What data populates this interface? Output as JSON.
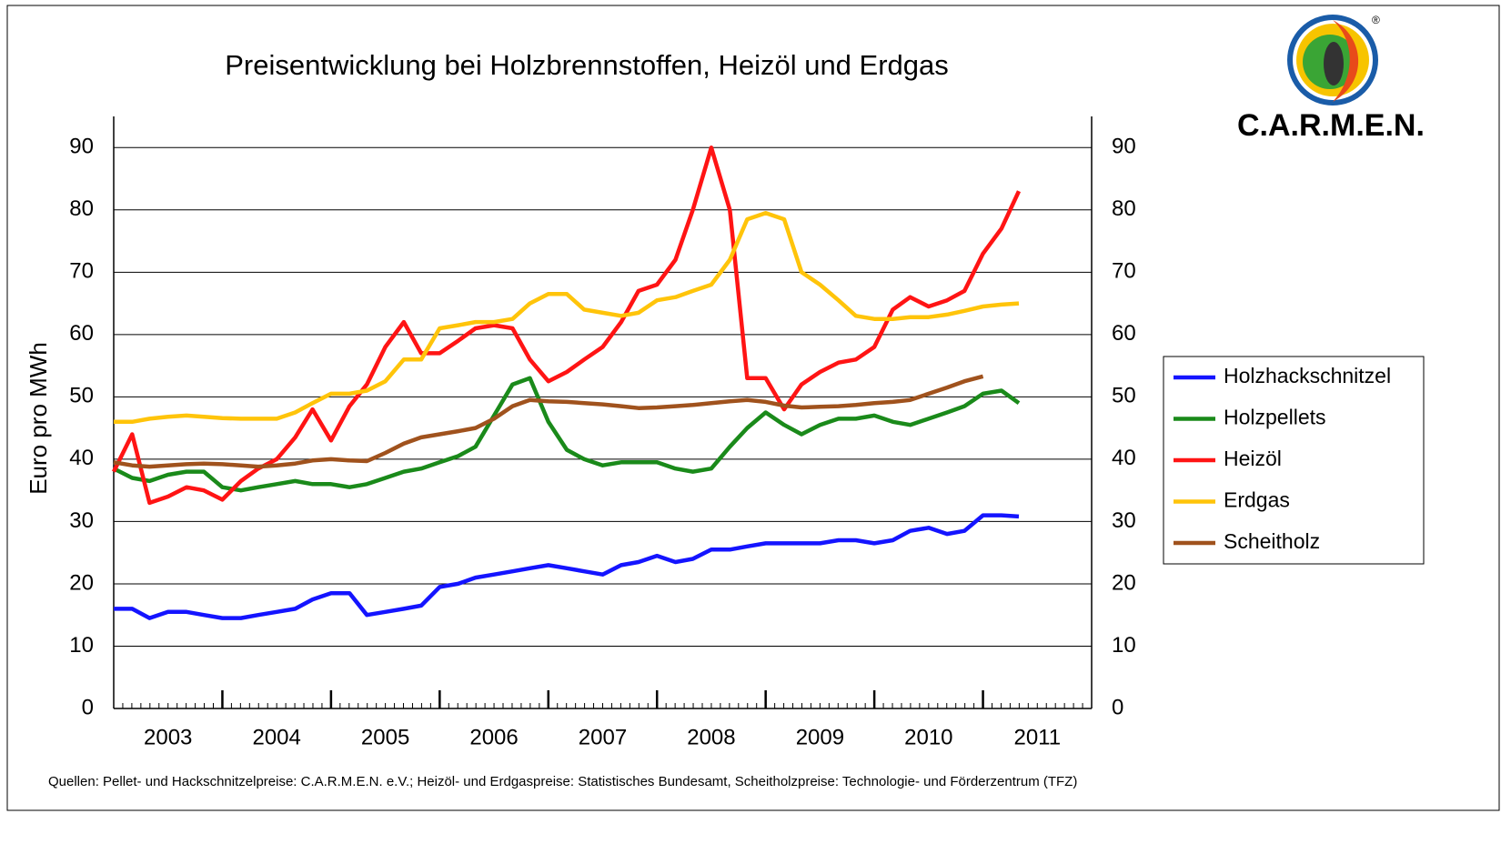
{
  "chart_data": {
    "type": "line",
    "title": "Preisentwicklung bei Holzbrennstoffen, Heizöl und Erdgas",
    "y_label": "Euro pro MWh",
    "source": "Quellen: Pellet- und Hackschnitzelpreise: C.A.R.M.E.N. e.V.; Heizöl- und Erdgaspreise: Statistisches Bundesamt, Scheitholzpreise: Technologie- und Förderzentrum (TFZ)",
    "logo_text": "C.A.R.M.E.N.",
    "logo_mark": "®",
    "x": [
      2003.0,
      2003.17,
      2003.33,
      2003.5,
      2003.67,
      2003.83,
      2004.0,
      2004.17,
      2004.33,
      2004.5,
      2004.67,
      2004.83,
      2005.0,
      2005.17,
      2005.33,
      2005.5,
      2005.67,
      2005.83,
      2006.0,
      2006.17,
      2006.33,
      2006.5,
      2006.67,
      2006.83,
      2007.0,
      2007.17,
      2007.33,
      2007.5,
      2007.67,
      2007.83,
      2008.0,
      2008.17,
      2008.33,
      2008.5,
      2008.67,
      2008.83,
      2009.0,
      2009.17,
      2009.33,
      2009.5,
      2009.67,
      2009.83,
      2010.0,
      2010.17,
      2010.33,
      2010.5,
      2010.67,
      2010.83,
      2011.0,
      2011.17,
      2011.33
    ],
    "xlim": [
      2003,
      2012
    ],
    "xticks": [
      {
        "value": 2003.5,
        "label": "2003"
      },
      {
        "value": 2004.5,
        "label": "2004"
      },
      {
        "value": 2005.5,
        "label": "2005"
      },
      {
        "value": 2006.5,
        "label": "2006"
      },
      {
        "value": 2007.5,
        "label": "2007"
      },
      {
        "value": 2008.5,
        "label": "2008"
      },
      {
        "value": 2009.5,
        "label": "2009"
      },
      {
        "value": 2010.5,
        "label": "2010"
      },
      {
        "value": 2011.5,
        "label": "2011"
      }
    ],
    "ylim": [
      0,
      95
    ],
    "yticks": [
      0,
      10,
      20,
      30,
      40,
      50,
      60,
      70,
      80,
      90
    ],
    "y2lim": [
      0,
      95
    ],
    "y2ticks": [
      0,
      10,
      20,
      30,
      40,
      50,
      60,
      70,
      80,
      90
    ],
    "grid": true,
    "legend": "right",
    "series": [
      {
        "name": "Holzhackschnitzel",
        "color": "#1414ff",
        "values": [
          16,
          16,
          14.5,
          15.5,
          15.5,
          15,
          14.5,
          14.5,
          15,
          15.5,
          16,
          17.5,
          18.5,
          18.5,
          15,
          15.5,
          16,
          16.5,
          19.5,
          20,
          21,
          21.5,
          22,
          22.5,
          23,
          22.5,
          22,
          21.5,
          23,
          23.5,
          24.5,
          23.5,
          24,
          25.5,
          25.5,
          26,
          26.5,
          26.5,
          26.5,
          26.5,
          27,
          27,
          26.5,
          27,
          28.5,
          29,
          28,
          28.5,
          31,
          31,
          30.8
        ]
      },
      {
        "name": "Holzpellets",
        "color": "#1a8a1a",
        "values": [
          38.5,
          37,
          36.5,
          37.5,
          38,
          38,
          35.5,
          35,
          35.5,
          36,
          36.5,
          36,
          36,
          35.5,
          36,
          37,
          38,
          38.5,
          39.5,
          40.5,
          42,
          47,
          52,
          53,
          46,
          41.5,
          40,
          39,
          39.5,
          39.5,
          39.5,
          38.5,
          38,
          38.5,
          42,
          45,
          47.5,
          45.5,
          44,
          45.5,
          46.5,
          46.5,
          47,
          46,
          45.5,
          46.5,
          47.5,
          48.5,
          50.5,
          51,
          49
        ]
      },
      {
        "name": "Heizöl",
        "color": "#ff1414",
        "values": [
          38,
          44,
          33,
          34,
          35.5,
          35,
          33.5,
          36.5,
          38.5,
          40,
          43.5,
          48,
          43,
          48.5,
          52,
          58,
          62,
          57,
          57,
          59,
          61,
          61.5,
          61,
          56,
          52.5,
          54,
          56,
          58,
          62,
          67,
          68,
          72,
          80,
          90,
          80,
          53,
          53,
          48,
          52,
          54,
          55.5,
          56,
          58,
          64,
          66,
          64.5,
          65.5,
          67,
          73,
          77,
          83
        ]
      },
      {
        "name": "Erdgas",
        "color": "#ffc40a",
        "values": [
          46,
          46,
          46.5,
          46.8,
          47,
          46.8,
          46.6,
          46.5,
          46.5,
          46.5,
          47.5,
          49,
          50.5,
          50.5,
          51,
          52.5,
          56,
          56,
          61,
          61.5,
          62,
          62,
          62.5,
          65,
          66.5,
          66.5,
          64,
          63.5,
          63,
          63.5,
          65.5,
          66,
          67,
          68,
          72,
          78.5,
          79.5,
          78.5,
          70,
          68,
          65.5,
          63,
          62.5,
          62.5,
          62.8,
          62.8,
          63.2,
          63.8,
          64.5,
          64.8,
          65
        ]
      },
      {
        "name": "Scheitholz",
        "color": "#a0521d",
        "values": [
          39.5,
          39,
          38.8,
          39,
          39.2,
          39.3,
          39.2,
          39,
          38.8,
          39,
          39.3,
          39.8,
          40,
          39.8,
          39.7,
          41,
          42.5,
          43.5,
          44,
          44.5,
          45,
          46.5,
          48.5,
          49.5,
          49.3,
          49.2,
          49,
          48.8,
          48.5,
          48.2,
          48.3,
          48.5,
          48.7,
          49,
          49.3,
          49.5,
          49.2,
          48.6,
          48.3,
          48.4,
          48.5,
          48.7,
          49,
          49.2,
          49.5,
          50.5,
          51.5,
          52.5,
          53.3,
          null,
          null
        ]
      }
    ]
  }
}
